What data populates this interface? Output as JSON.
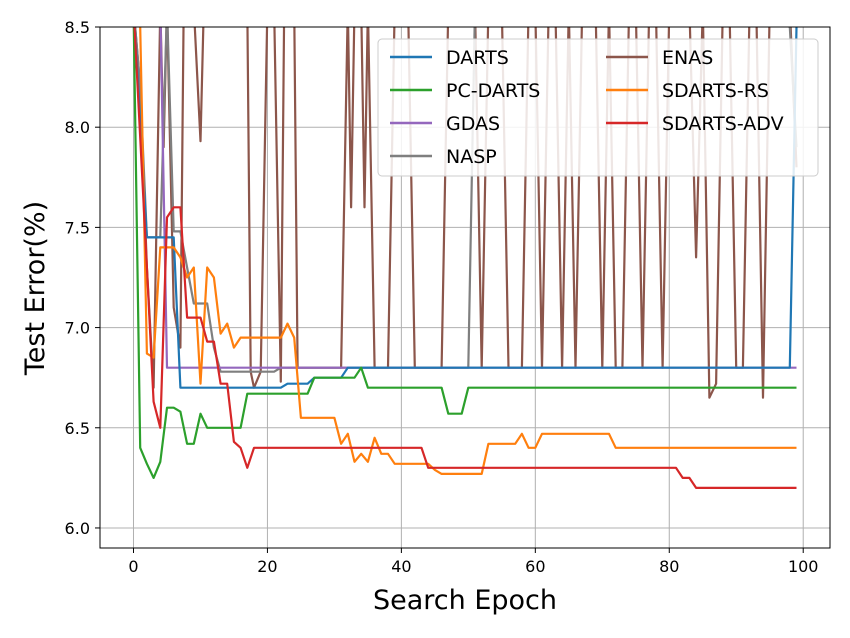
{
  "chart_data": {
    "type": "line",
    "xlabel": "Search Epoch",
    "ylabel": "Test Error(%)",
    "xlim": [
      -5,
      104
    ],
    "ylim": [
      5.9,
      8.5
    ],
    "xticks": [
      0,
      20,
      40,
      60,
      80,
      100
    ],
    "yticks": [
      6.0,
      6.5,
      7.0,
      7.5,
      8.0,
      8.5
    ],
    "xtick_labels": [
      "0",
      "20",
      "40",
      "60",
      "80",
      "100"
    ],
    "ytick_labels": [
      "6.0",
      "6.5",
      "7.0",
      "7.5",
      "8.0",
      "8.5"
    ],
    "grid": true,
    "legend_position": "top-right",
    "legend_columns": 2,
    "series": [
      {
        "name": "DARTS",
        "color": "#1f77b4",
        "points": [
          [
            0,
            8.6
          ],
          [
            2,
            7.45
          ],
          [
            3,
            7.45
          ],
          [
            5,
            7.45
          ],
          [
            6,
            7.45
          ],
          [
            7,
            6.7
          ],
          [
            10,
            6.7
          ],
          [
            15,
            6.7
          ],
          [
            20,
            6.7
          ],
          [
            22,
            6.7
          ],
          [
            23,
            6.72
          ],
          [
            26,
            6.72
          ],
          [
            27,
            6.75
          ],
          [
            31,
            6.75
          ],
          [
            32,
            6.8
          ],
          [
            35,
            6.8
          ],
          [
            50,
            6.8
          ],
          [
            70,
            6.8
          ],
          [
            90,
            6.8
          ],
          [
            98,
            6.8
          ],
          [
            99,
            8.5
          ]
        ]
      },
      {
        "name": "PC-DARTS",
        "color": "#2ca02c",
        "points": [
          [
            0,
            8.6
          ],
          [
            1,
            6.4
          ],
          [
            2,
            6.32
          ],
          [
            3,
            6.25
          ],
          [
            4,
            6.33
          ],
          [
            5,
            6.6
          ],
          [
            6,
            6.6
          ],
          [
            7,
            6.58
          ],
          [
            8,
            6.42
          ],
          [
            9,
            6.42
          ],
          [
            10,
            6.57
          ],
          [
            11,
            6.5
          ],
          [
            16,
            6.5
          ],
          [
            17,
            6.67
          ],
          [
            26,
            6.67
          ],
          [
            27,
            6.75
          ],
          [
            33,
            6.75
          ],
          [
            34,
            6.8
          ],
          [
            35,
            6.7
          ],
          [
            46,
            6.7
          ],
          [
            47,
            6.57
          ],
          [
            49,
            6.57
          ],
          [
            50,
            6.7
          ],
          [
            99,
            6.7
          ]
        ]
      },
      {
        "name": "GDAS",
        "color": "#9467bd",
        "points": [
          [
            4,
            8.6
          ],
          [
            5,
            6.8
          ],
          [
            50,
            6.8
          ],
          [
            99,
            6.8
          ]
        ]
      },
      {
        "name": "NASP",
        "color": "#7f7f7f",
        "points": [
          [
            0,
            8.6
          ],
          [
            1,
            8.2
          ],
          [
            2,
            7.45
          ],
          [
            4,
            7.45
          ],
          [
            5,
            8.6
          ],
          [
            6,
            7.48
          ],
          [
            7,
            7.48
          ],
          [
            8,
            7.3
          ],
          [
            9,
            7.12
          ],
          [
            11,
            7.12
          ],
          [
            12,
            6.9
          ],
          [
            13,
            6.78
          ],
          [
            14,
            6.78
          ],
          [
            21,
            6.78
          ],
          [
            22,
            6.8
          ],
          [
            50,
            6.8
          ],
          [
            51,
            8.6
          ],
          [
            70,
            8.6
          ],
          [
            80,
            8.6
          ],
          [
            90,
            8.6
          ],
          [
            98,
            8.5
          ],
          [
            99,
            7.9
          ]
        ]
      },
      {
        "name": "ENAS",
        "color": "#8c564b",
        "points": [
          [
            0,
            8.6
          ],
          [
            1,
            8.2
          ],
          [
            2,
            7.3
          ],
          [
            3,
            6.7
          ],
          [
            4,
            8.6
          ],
          [
            4.5,
            7.9
          ],
          [
            5,
            8.6
          ],
          [
            6,
            7.1
          ],
          [
            7,
            6.9
          ],
          [
            7.5,
            8.6
          ],
          [
            8,
            8.6
          ],
          [
            9,
            8.6
          ],
          [
            10,
            7.93
          ],
          [
            10.5,
            8.6
          ],
          [
            17,
            8.6
          ],
          [
            17.5,
            6.78
          ],
          [
            18,
            6.7
          ],
          [
            19,
            6.78
          ],
          [
            20,
            8.6
          ],
          [
            21,
            8.6
          ],
          [
            22,
            6.73
          ],
          [
            22.5,
            8.6
          ],
          [
            24,
            8.6
          ],
          [
            24.5,
            6.8
          ],
          [
            25,
            6.8
          ],
          [
            31,
            6.8
          ],
          [
            32,
            8.6
          ],
          [
            32.5,
            7.6
          ],
          [
            33,
            8.6
          ],
          [
            34,
            8.6
          ],
          [
            34.5,
            7.6
          ],
          [
            35,
            8.6
          ],
          [
            36,
            6.8
          ],
          [
            38,
            6.8
          ],
          [
            39,
            8.6
          ],
          [
            41,
            8.6
          ],
          [
            42,
            6.8
          ],
          [
            46,
            6.8
          ],
          [
            47,
            8.6
          ],
          [
            51,
            8.6
          ],
          [
            52,
            6.8
          ],
          [
            53,
            8.6
          ],
          [
            55,
            8.6
          ],
          [
            56,
            6.8
          ],
          [
            58,
            6.8
          ],
          [
            59,
            8.6
          ],
          [
            60,
            8.6
          ],
          [
            61,
            6.8
          ],
          [
            62,
            8.6
          ],
          [
            63,
            8.6
          ],
          [
            64,
            6.8
          ],
          [
            65,
            8.6
          ],
          [
            66,
            6.8
          ],
          [
            67,
            8.6
          ],
          [
            69,
            8.6
          ],
          [
            70,
            6.8
          ],
          [
            71,
            8.6
          ],
          [
            72,
            6.8
          ],
          [
            73,
            6.8
          ],
          [
            74,
            8.6
          ],
          [
            75,
            8.6
          ],
          [
            76,
            6.8
          ],
          [
            77,
            8.6
          ],
          [
            78,
            8.6
          ],
          [
            79,
            6.8
          ],
          [
            80,
            8.6
          ],
          [
            83,
            8.6
          ],
          [
            84,
            7.35
          ],
          [
            85,
            8.6
          ],
          [
            86,
            6.65
          ],
          [
            87,
            6.72
          ],
          [
            88,
            8.6
          ],
          [
            89,
            8.6
          ],
          [
            90,
            6.8
          ],
          [
            91,
            6.8
          ],
          [
            92,
            8.6
          ],
          [
            93,
            8.6
          ],
          [
            94,
            6.65
          ],
          [
            95,
            8.6
          ],
          [
            98,
            8.6
          ],
          [
            99,
            7.8
          ]
        ]
      },
      {
        "name": "SDARTS-RS",
        "color": "#ff7f0e",
        "points": [
          [
            0,
            8.6
          ],
          [
            1,
            8.5
          ],
          [
            2,
            6.87
          ],
          [
            3,
            6.85
          ],
          [
            4,
            7.4
          ],
          [
            5,
            7.4
          ],
          [
            6,
            7.4
          ],
          [
            7,
            7.35
          ],
          [
            8,
            7.25
          ],
          [
            9,
            7.3
          ],
          [
            10,
            6.72
          ],
          [
            11,
            7.3
          ],
          [
            12,
            7.25
          ],
          [
            13,
            6.97
          ],
          [
            14,
            7.02
          ],
          [
            15,
            6.9
          ],
          [
            16,
            6.95
          ],
          [
            22,
            6.95
          ],
          [
            23,
            7.02
          ],
          [
            24,
            6.95
          ],
          [
            25,
            6.55
          ],
          [
            30,
            6.55
          ],
          [
            31,
            6.42
          ],
          [
            32,
            6.47
          ],
          [
            33,
            6.33
          ],
          [
            34,
            6.37
          ],
          [
            35,
            6.33
          ],
          [
            36,
            6.45
          ],
          [
            37,
            6.37
          ],
          [
            38,
            6.37
          ],
          [
            39,
            6.32
          ],
          [
            40,
            6.32
          ],
          [
            44,
            6.32
          ],
          [
            45,
            6.29
          ],
          [
            46,
            6.27
          ],
          [
            47,
            6.27
          ],
          [
            52,
            6.27
          ],
          [
            53,
            6.42
          ],
          [
            57,
            6.42
          ],
          [
            58,
            6.47
          ],
          [
            59,
            6.4
          ],
          [
            60,
            6.4
          ],
          [
            61,
            6.47
          ],
          [
            71,
            6.47
          ],
          [
            72,
            6.4
          ],
          [
            99,
            6.4
          ]
        ]
      },
      {
        "name": "SDARTS-ADV",
        "color": "#d62728",
        "points": [
          [
            0,
            8.6
          ],
          [
            2,
            7.3
          ],
          [
            3,
            6.63
          ],
          [
            4,
            6.5
          ],
          [
            5,
            7.55
          ],
          [
            6,
            7.6
          ],
          [
            7,
            7.6
          ],
          [
            8,
            7.05
          ],
          [
            10,
            7.05
          ],
          [
            11,
            6.93
          ],
          [
            12,
            6.93
          ],
          [
            13,
            6.72
          ],
          [
            14,
            6.72
          ],
          [
            15,
            6.43
          ],
          [
            16,
            6.4
          ],
          [
            17,
            6.3
          ],
          [
            18,
            6.4
          ],
          [
            20,
            6.4
          ],
          [
            43,
            6.4
          ],
          [
            44,
            6.3
          ],
          [
            80,
            6.3
          ],
          [
            81,
            6.3
          ],
          [
            82,
            6.25
          ],
          [
            83,
            6.25
          ],
          [
            84,
            6.2
          ],
          [
            99,
            6.2
          ]
        ]
      }
    ]
  }
}
